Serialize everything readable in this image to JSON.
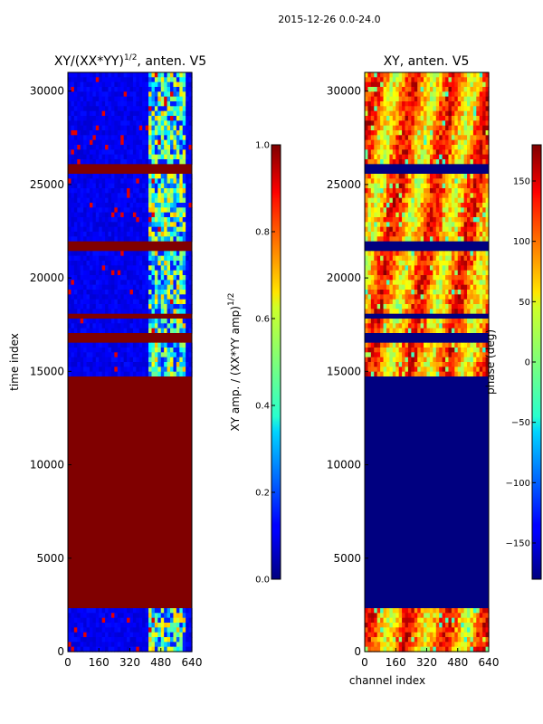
{
  "suptitle": "2015-12-26 0.0-24.0",
  "colors": {
    "saturated_red": "#800000",
    "deep_blue": "#00007f",
    "frame": "#000000"
  },
  "chart_data": [
    {
      "type": "heatmap",
      "title": "XY/(XX*YY)",
      "title_exponent": "1/2",
      "title_suffix": ", anten. V5",
      "xlabel": "",
      "ylabel": "time index",
      "xlim": [
        0,
        640
      ],
      "ylim": [
        0,
        31000
      ],
      "xticks": [
        "0",
        "160",
        "320",
        "480",
        "640"
      ],
      "xtick_values": [
        0,
        160,
        320,
        480,
        640
      ],
      "yticks": [
        "0",
        "5000",
        "10000",
        "15000",
        "20000",
        "25000",
        "30000"
      ],
      "ytick_values": [
        0,
        5000,
        10000,
        15000,
        20000,
        25000,
        30000
      ],
      "colormap": "jet",
      "clim": [
        0,
        1
      ],
      "colorbar_label": "XY amp. / (XX*YY amp)",
      "colorbar_label_exponent": "1/2",
      "colorbar_ticks": [
        "0.0",
        "0.2",
        "0.4",
        "0.6",
        "0.8",
        "1.0"
      ],
      "colorbar_tick_values": [
        0,
        0.2,
        0.4,
        0.6,
        0.8,
        1.0
      ],
      "saturated_bands": [
        {
          "from": 2200,
          "to": 14700,
          "value": 1.0
        },
        {
          "from": 16600,
          "to": 17000,
          "value": 1.0
        },
        {
          "from": 17800,
          "to": 18200,
          "value": 1.0
        },
        {
          "from": 21400,
          "to": 22000,
          "value": 1.0
        },
        {
          "from": 25700,
          "to": 26000,
          "value": 1.0
        }
      ],
      "rfi_channel_range": [
        420,
        610
      ],
      "background_level": 0.08,
      "rfi_level": 0.45
    },
    {
      "type": "heatmap",
      "title": "XY, anten. V5",
      "xlabel": "channel index",
      "ylabel": "",
      "xlim": [
        0,
        640
      ],
      "ylim": [
        0,
        31000
      ],
      "xticks": [
        "0",
        "160",
        "320",
        "480",
        "640"
      ],
      "xtick_values": [
        0,
        160,
        320,
        480,
        640
      ],
      "yticks": [
        "0",
        "5000",
        "10000",
        "15000",
        "20000",
        "25000",
        "30000"
      ],
      "ytick_values": [
        0,
        5000,
        10000,
        15000,
        20000,
        25000,
        30000
      ],
      "colormap": "jet",
      "clim": [
        -180,
        180
      ],
      "colorbar_label": "phase (deg)",
      "colorbar_ticks": [
        "−150",
        "−100",
        "−50",
        "0",
        "50",
        "100",
        "150"
      ],
      "colorbar_tick_values": [
        -150,
        -100,
        -50,
        0,
        50,
        100,
        150
      ],
      "flat_bands": [
        {
          "from": 2200,
          "to": 14700,
          "value": -180
        },
        {
          "from": 16600,
          "to": 17000,
          "value": -180
        },
        {
          "from": 17800,
          "to": 18200,
          "value": -180
        },
        {
          "from": 21400,
          "to": 22000,
          "value": -180
        },
        {
          "from": 25700,
          "to": 26000,
          "value": -180
        }
      ],
      "phase_center": 90
    }
  ]
}
